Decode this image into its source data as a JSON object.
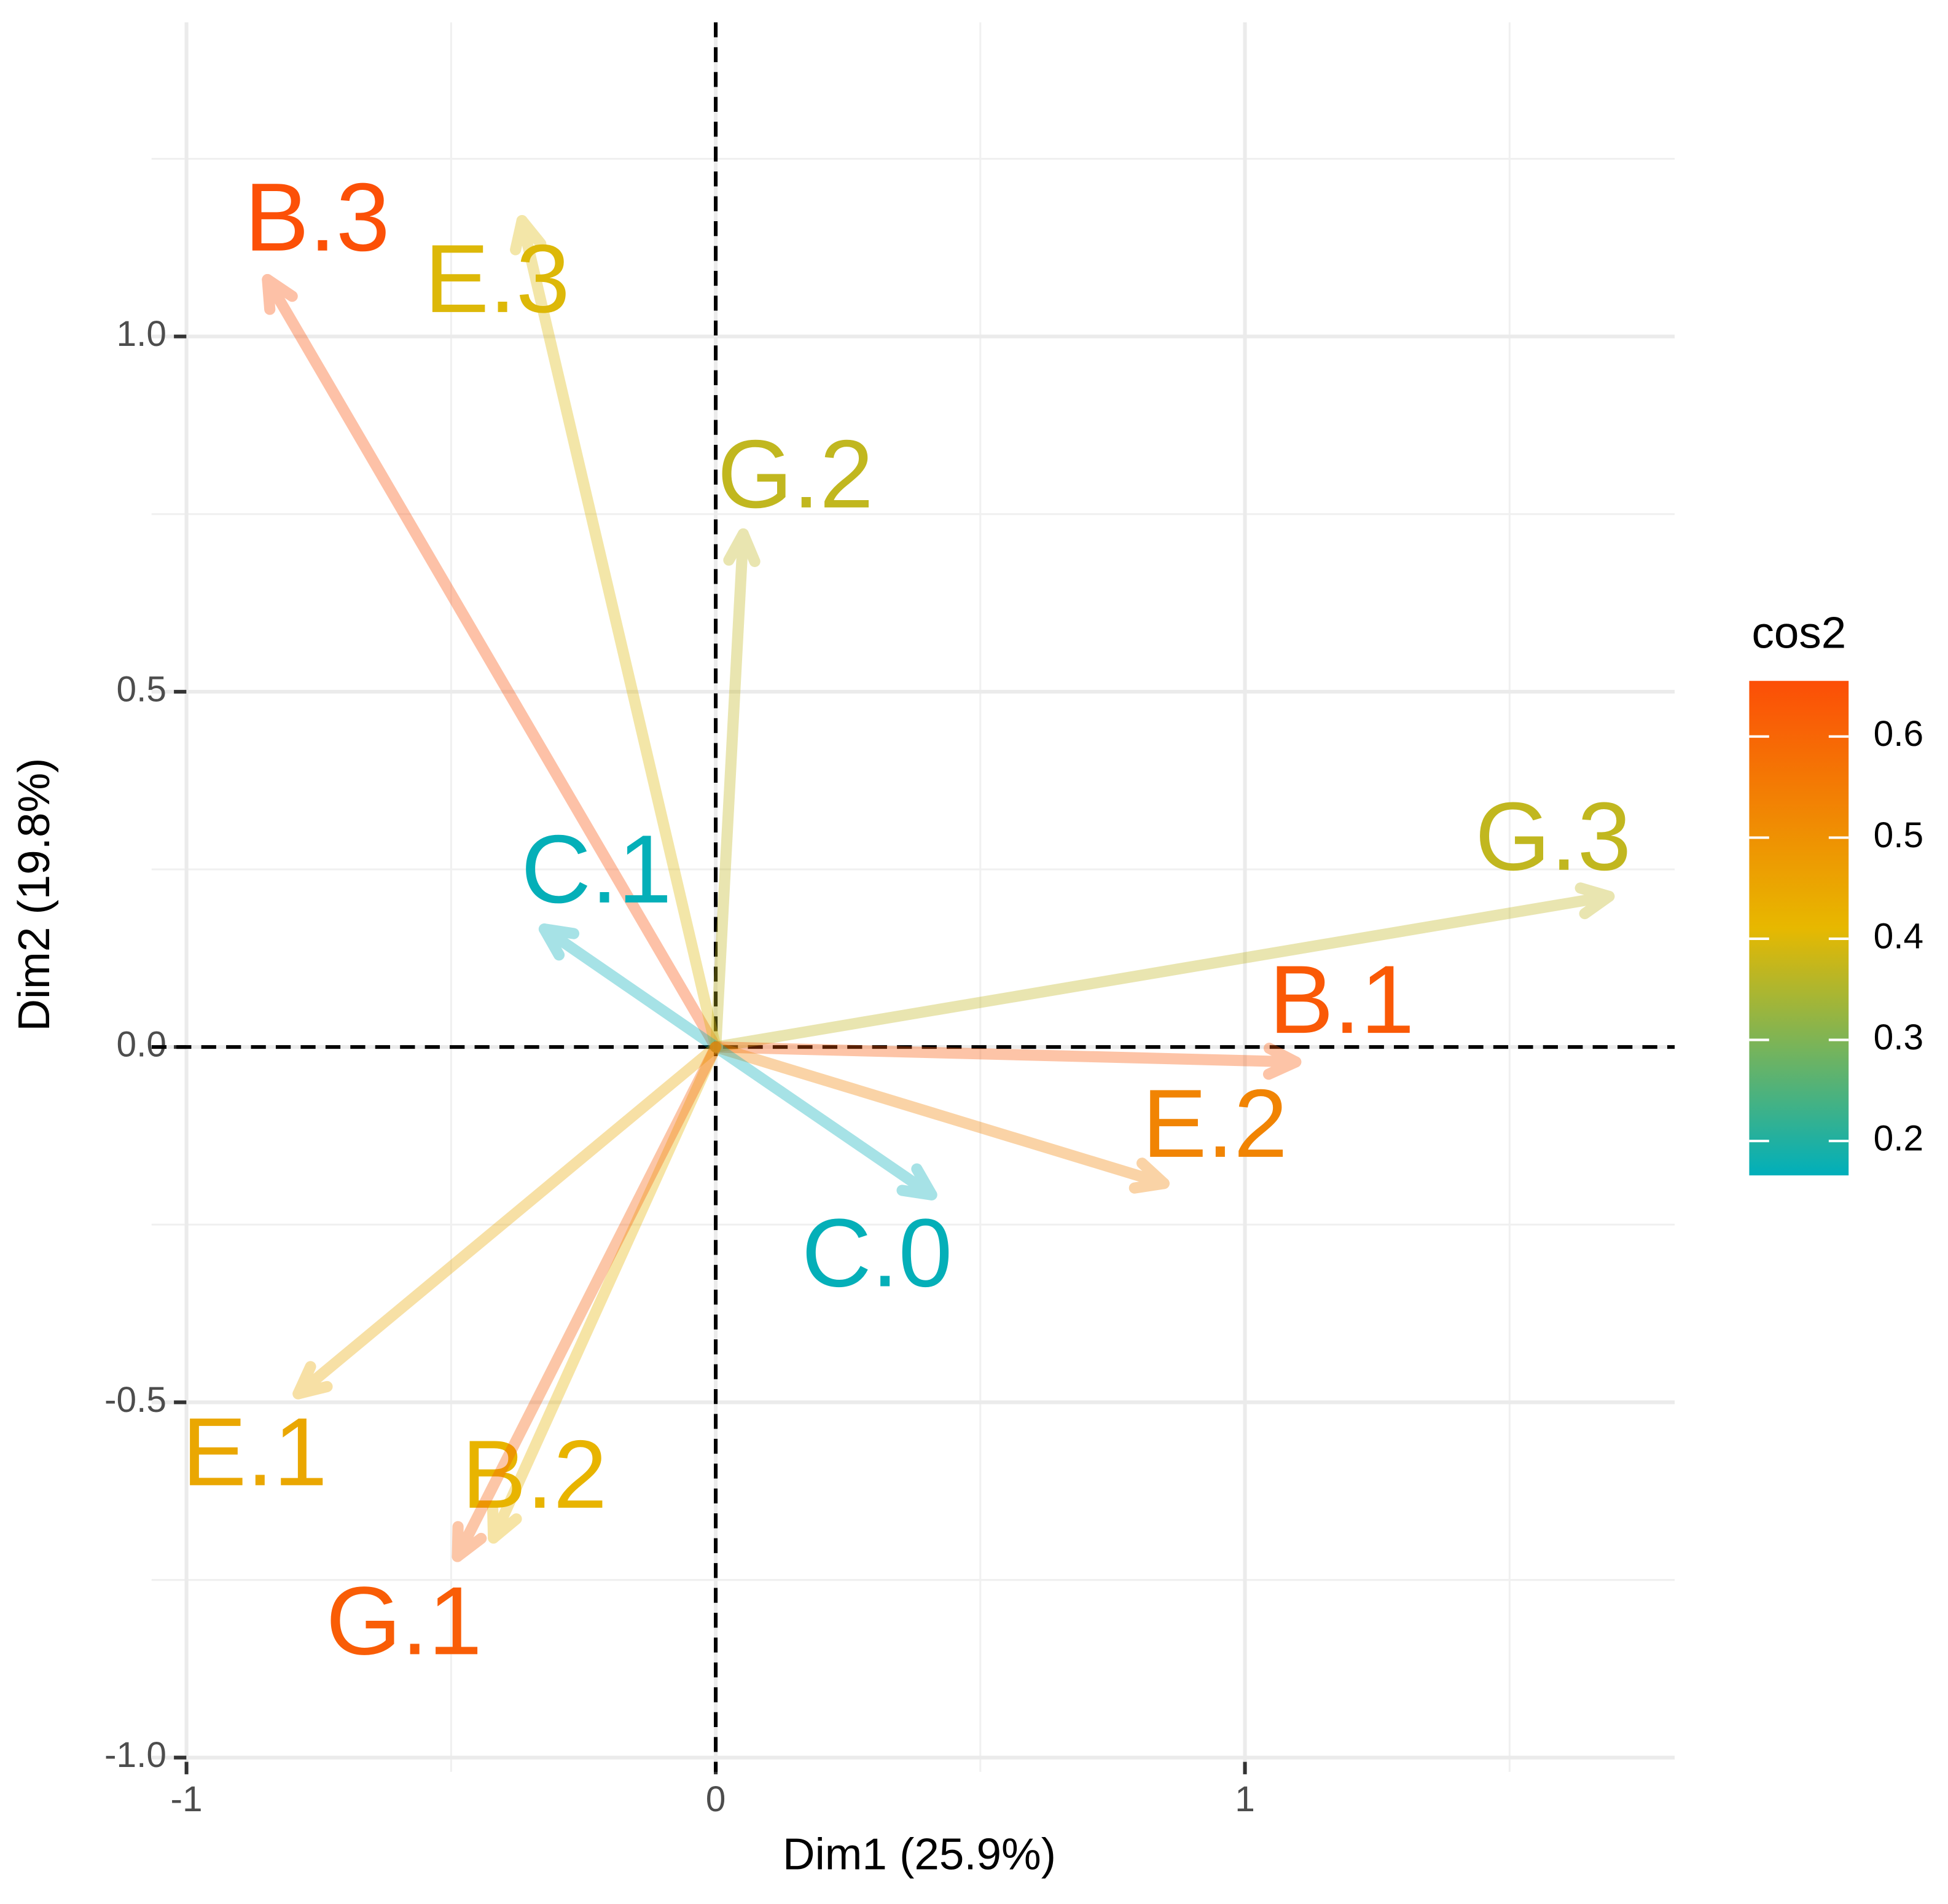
{
  "chart_data": {
    "type": "variable-arrows",
    "xlabel": "Dim1 (25.9%)",
    "ylabel": "Dim2 (19.8%)",
    "xlim": [
      -1.066,
      1.812
    ],
    "ylim": [
      -1.02,
      1.442
    ],
    "xticks": [
      -1,
      0,
      1
    ],
    "yticks": [
      {
        "value": -1.0,
        "label": "-1.0"
      },
      {
        "value": -0.5,
        "label": "-0.5"
      },
      {
        "value": 0.0,
        "label": "0.0"
      },
      {
        "value": 0.5,
        "label": "0.5"
      },
      {
        "value": 1.0,
        "label": "1.0"
      }
    ],
    "grid": true,
    "points": [
      {
        "name": "B.3",
        "x": -0.847,
        "y": 1.08,
        "cos2": 0.65
      },
      {
        "name": "E.3",
        "x": -0.366,
        "y": 1.163,
        "cos2": 0.4
      },
      {
        "name": "G.2",
        "x": 0.052,
        "y": 0.722,
        "cos2": 0.37
      },
      {
        "name": "C.1",
        "x": -0.324,
        "y": 0.166,
        "cos2": 0.17
      },
      {
        "name": "G.3",
        "x": 1.688,
        "y": 0.212,
        "cos2": 0.37
      },
      {
        "name": "B.1",
        "x": 1.096,
        "y": -0.021,
        "cos2": 0.63
      },
      {
        "name": "E.2",
        "x": 0.847,
        "y": -0.192,
        "cos2": 0.53
      },
      {
        "name": "C.0",
        "x": 0.408,
        "y": -0.208,
        "cos2": 0.17
      },
      {
        "name": "E.1",
        "x": -0.789,
        "y": -0.488,
        "cos2": 0.45
      },
      {
        "name": "B.2",
        "x": -0.42,
        "y": -0.691,
        "cos2": 0.42
      },
      {
        "name": "G.1",
        "x": -0.488,
        "y": -0.717,
        "cos2": 0.62
      }
    ],
    "legend": {
      "title": "cos2",
      "colors": [
        "#00AFBB",
        "#E7B800",
        "#FC4E07"
      ],
      "lim": [
        0.166,
        0.655
      ],
      "ticks": [
        0.2,
        0.3,
        0.4,
        0.5,
        0.6
      ]
    }
  }
}
